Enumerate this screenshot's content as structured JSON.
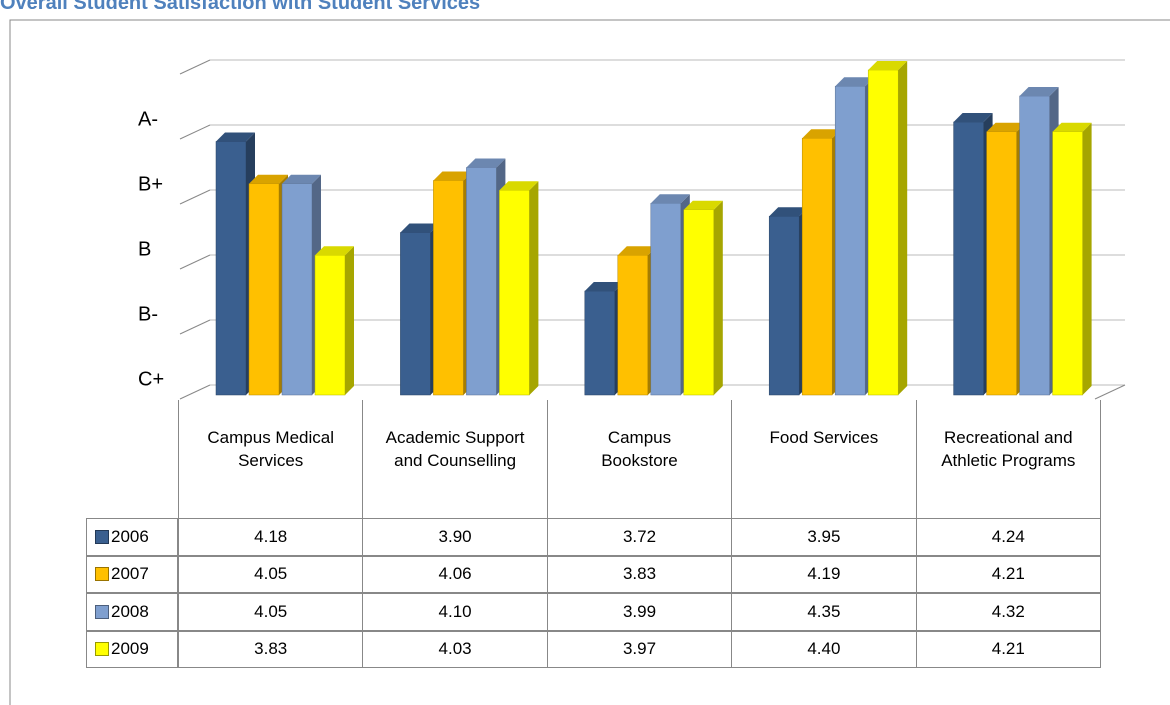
{
  "chart_data": {
    "type": "bar3d",
    "title": "Overall Student Satisfaction with Student Services",
    "categories": [
      "Campus Medical Services",
      "Academic Support and Counselling",
      "Campus Bookstore",
      "Food Services",
      "Recreational and Athletic Programs"
    ],
    "series": [
      {
        "name": "2006",
        "color": "#3a5f8f",
        "values": [
          4.18,
          3.9,
          3.72,
          3.95,
          4.24
        ],
        "value_labels": [
          "4.18",
          "3.90",
          "3.72",
          "3.95",
          "4.24"
        ]
      },
      {
        "name": "2007",
        "color": "#ffc000",
        "values": [
          4.05,
          4.06,
          3.83,
          4.19,
          4.21
        ],
        "value_labels": [
          "4.05",
          "4.06",
          "3.83",
          "4.19",
          "4.21"
        ]
      },
      {
        "name": "2008",
        "color": "#7f9fcf",
        "values": [
          4.05,
          4.1,
          3.99,
          4.35,
          4.32
        ],
        "value_labels": [
          "4.05",
          "4.10",
          "3.99",
          "4.35",
          "4.32"
        ]
      },
      {
        "name": "2009",
        "color": "#ffff00",
        "values": [
          3.83,
          4.03,
          3.97,
          4.4,
          4.21
        ],
        "value_labels": [
          "3.83",
          "4.03",
          "3.97",
          "4.40",
          "4.21"
        ]
      }
    ],
    "ylim": [
      3.4,
      4.4
    ],
    "yticks": [
      {
        "value": 3.4,
        "label": "C+"
      },
      {
        "value": 3.6,
        "label": "B-"
      },
      {
        "value": 3.8,
        "label": "B"
      },
      {
        "value": 4.0,
        "label": "B+"
      },
      {
        "value": 4.2,
        "label": "A-"
      }
    ],
    "grid": true
  }
}
